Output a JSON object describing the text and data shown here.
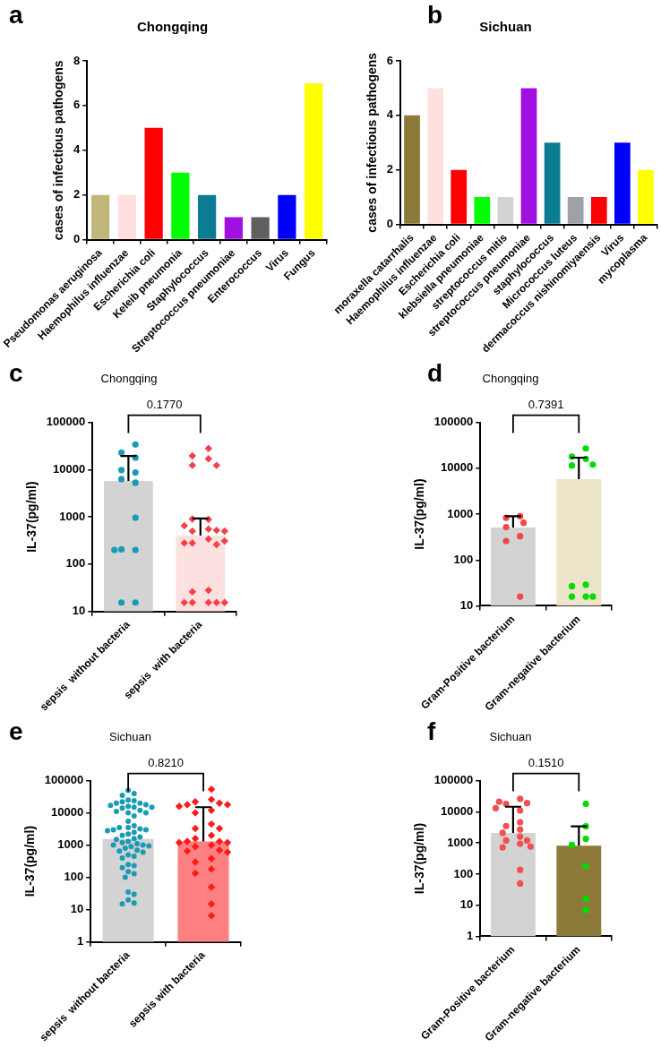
{
  "chart_data": [
    {
      "type": "bar",
      "title": "Chongqing",
      "ylabel": "cases of infectious pathogens",
      "annotations": [
        "a"
      ],
      "categories": [
        "Pseudomonas aeruginosa",
        "Haemophilus influenzae",
        "Escherichia coli",
        "Keleib pneumonia",
        "Staphylococcus",
        "Streptococcus pneumoniae",
        "Enterococcus",
        "Virus",
        "Fungus"
      ],
      "values": [
        2,
        2,
        5,
        3,
        2,
        1,
        1,
        2,
        7
      ],
      "colors": [
        "#c2b77a",
        "#ffdfe0",
        "#ff0000",
        "#00ff00",
        "#0a7d94",
        "#a010e0",
        "#606060",
        "#0000ff",
        "#ffff00"
      ],
      "ylim": [
        0,
        8
      ],
      "yticks": [
        0,
        2,
        4,
        6,
        8
      ],
      "grid": false,
      "legend": false
    },
    {
      "type": "bar",
      "title": "Sichuan",
      "ylabel": "cases of infectious pathogens",
      "annotations": [
        "b"
      ],
      "categories": [
        "moraxella catarrhalis",
        "Haemophilus influenzae",
        "Escherichia coli",
        "klebsiella pneumoniae",
        "streptococcus mitis",
        "streptococcus pneumoniae",
        "staphylococcus",
        "Micrococcus luteus",
        "dermacoccus nishinomiyaensis",
        "Virus",
        "mycoplasma"
      ],
      "values": [
        4,
        5,
        2,
        1,
        1,
        5,
        3,
        1,
        1,
        3,
        2
      ],
      "colors": [
        "#8b7a3a",
        "#ffe0e0",
        "#ff0000",
        "#00ff00",
        "#d3d3d3",
        "#a010e0",
        "#0a7d94",
        "#a0a0a8",
        "#ff0000",
        "#0000ff",
        "#ffff00"
      ],
      "ylim": [
        0,
        6
      ],
      "yticks": [
        0,
        2,
        4,
        6
      ],
      "grid": false,
      "legend": false
    },
    {
      "type": "bar",
      "title": "Chongqing",
      "ylabel": "IL-37(pg/ml)",
      "annotations": [
        "c",
        "0.1770"
      ],
      "log": true,
      "categories": [
        "sepsis  without bacteria",
        "sepsis  with bacteria"
      ],
      "ylim": [
        10,
        100000
      ],
      "yticks": [
        10,
        100,
        1000,
        10000,
        100000
      ],
      "grid": false,
      "legend": false,
      "series": [
        {
          "type": "bar",
          "values": [
            5750,
            400
          ],
          "colors": [
            "#d3d3d3",
            "#fde0e0"
          ],
          "errors": [
            [
              5750,
              19500
            ],
            [
              400,
              930
            ]
          ]
        },
        {
          "type": "scatter",
          "marker": "circle",
          "color": "#1a9bb5",
          "x": [
            "sepsis  without bacteria",
            "sepsis  without bacteria",
            "sepsis  without bacteria",
            "sepsis  without bacteria",
            "sepsis  without bacteria",
            "sepsis  without bacteria",
            "sepsis  without bacteria",
            "sepsis  without bacteria",
            "sepsis  without bacteria",
            "sepsis  without bacteria",
            "sepsis  without bacteria",
            "sepsis  without bacteria",
            "sepsis  without bacteria"
          ],
          "values": [
            34000,
            18000,
            23000,
            8700,
            9800,
            5300,
            6300,
            960,
            200,
            205,
            200,
            15.4,
            15.4
          ]
        },
        {
          "type": "scatter",
          "marker": "diamond",
          "color": "#f5404a",
          "x": [
            "sepsis  with bacteria",
            "sepsis  with bacteria",
            "sepsis  with bacteria",
            "sepsis  with bacteria",
            "sepsis  with bacteria",
            "sepsis  with bacteria",
            "sepsis  with bacteria",
            "sepsis  with bacteria",
            "sepsis  with bacteria",
            "sepsis  with bacteria",
            "sepsis  with bacteria",
            "sepsis  with bacteria",
            "sepsis  with bacteria",
            "sepsis  with bacteria",
            "sepsis  with bacteria",
            "sepsis  with bacteria",
            "sepsis  with bacteria",
            "sepsis  with bacteria",
            "sepsis  with bacteria",
            "sepsis  with bacteria",
            "sepsis  with bacteria",
            "sepsis  with bacteria",
            "sepsis  with bacteria",
            "sepsis  with bacteria"
          ],
          "values": [
            28000,
            17000,
            19500,
            12300,
            12300,
            880,
            900,
            550,
            500,
            520,
            650,
            500,
            340,
            280,
            260,
            280,
            310,
            28,
            26,
            15.4,
            15.4,
            15.4,
            15.4,
            15.4
          ]
        }
      ]
    },
    {
      "type": "bar",
      "title": "Chongqing",
      "ylabel": "IL-37(pg/ml)",
      "annotations": [
        "d",
        "0.7391"
      ],
      "log": true,
      "categories": [
        "Gram-Positive bacterium",
        "Gram-negative bacterium"
      ],
      "ylim": [
        10,
        100000
      ],
      "yticks": [
        10,
        100,
        1000,
        10000,
        100000
      ],
      "grid": false,
      "legend": false,
      "series": [
        {
          "type": "bar",
          "values": [
            510,
            5800
          ],
          "colors": [
            "#d3d3d3",
            "#ece4c8"
          ],
          "errors": [
            [
              510,
              900
            ],
            [
              5800,
              17000
            ]
          ]
        },
        {
          "type": "scatter",
          "marker": "circle",
          "color": "#f04848",
          "x": [
            "Gram-Positive bacterium",
            "Gram-Positive bacterium",
            "Gram-Positive bacterium",
            "Gram-Positive bacterium",
            "Gram-Positive bacterium",
            "Gram-Positive bacterium",
            "Gram-Positive bacterium"
          ],
          "values": [
            900,
            830,
            650,
            520,
            330,
            260,
            16
          ]
        },
        {
          "type": "scatter",
          "marker": "circle",
          "color": "#00dd00",
          "x": [
            "Gram-negative bacterium",
            "Gram-negative bacterium",
            "Gram-negative bacterium",
            "Gram-negative bacterium",
            "Gram-negative bacterium",
            "Gram-negative bacterium",
            "Gram-negative bacterium",
            "Gram-negative bacterium",
            "Gram-negative bacterium",
            "Gram-negative bacterium"
          ],
          "values": [
            27000,
            16000,
            18000,
            11500,
            12000,
            29,
            27,
            16,
            16,
            16
          ]
        }
      ]
    },
    {
      "type": "bar",
      "title": "Sichuan",
      "ylabel": "IL-37(pg/ml)",
      "annotations": [
        "e",
        "0.8210"
      ],
      "log": true,
      "categories": [
        "sepsis  without bacteria",
        "sepsis with bacteria"
      ],
      "ylim": [
        1,
        100000
      ],
      "yticks": [
        1,
        10,
        100,
        1000,
        10000,
        100000
      ],
      "grid": false,
      "legend": false,
      "series": [
        {
          "type": "bar",
          "values": [
            1550,
            1300
          ],
          "colors": [
            "#d3d3d3",
            "#ff8080"
          ],
          "errors": [
            null,
            [
              1300,
              15000
            ]
          ]
        },
        {
          "type": "scatter",
          "marker": "circle",
          "color": "#1a9bb5",
          "x": [
            "sepsis  without bacteria",
            "sepsis  without bacteria",
            "sepsis  without bacteria",
            "sepsis  without bacteria",
            "sepsis  without bacteria",
            "sepsis  without bacteria",
            "sepsis  without bacteria",
            "sepsis  without bacteria",
            "sepsis  without bacteria",
            "sepsis  without bacteria",
            "sepsis  without bacteria",
            "sepsis  without bacteria",
            "sepsis  without bacteria",
            "sepsis  without bacteria",
            "sepsis  without bacteria",
            "sepsis  without bacteria",
            "sepsis  without bacteria",
            "sepsis  without bacteria",
            "sepsis  without bacteria",
            "sepsis  without bacteria",
            "sepsis  without bacteria",
            "sepsis  without bacteria",
            "sepsis  without bacteria",
            "sepsis  without bacteria",
            "sepsis  without bacteria",
            "sepsis  without bacteria",
            "sepsis  without bacteria",
            "sepsis  without bacteria",
            "sepsis  without bacteria",
            "sepsis  without bacteria",
            "sepsis  without bacteria",
            "sepsis  without bacteria",
            "sepsis  without bacteria",
            "sepsis  without bacteria",
            "sepsis  without bacteria",
            "sepsis  without bacteria",
            "sepsis  without bacteria",
            "sepsis  without bacteria",
            "sepsis  without bacteria",
            "sepsis  without bacteria",
            "sepsis  without bacteria",
            "sepsis  without bacteria",
            "sepsis  without bacteria",
            "sepsis  without bacteria",
            "sepsis  without bacteria",
            "sepsis  without bacteria",
            "sepsis  without bacteria",
            "sepsis  without bacteria",
            "sepsis  without bacteria",
            "sepsis  without bacteria",
            "sepsis  without bacteria",
            "sepsis  without bacteria",
            "sepsis  without bacteria",
            "sepsis  without bacteria",
            "sepsis  without bacteria",
            "sepsis  without bacteria",
            "sepsis  without bacteria",
            "sepsis  without bacteria"
          ],
          "values": [
            50000,
            40000,
            35000,
            25000,
            24000,
            22000,
            20000,
            20000,
            18000,
            17000,
            16000,
            15000,
            15000,
            14000,
            12000,
            11000,
            10000,
            10000,
            8000,
            5500,
            4000,
            3500,
            3500,
            3200,
            3000,
            3000,
            2800,
            2500,
            2200,
            2000,
            1800,
            1600,
            1500,
            1300,
            1200,
            1100,
            1000,
            1000,
            950,
            900,
            800,
            700,
            650,
            600,
            500,
            450,
            400,
            250,
            230,
            200,
            150,
            130,
            100,
            35,
            30,
            20,
            16,
            15
          ]
        },
        {
          "type": "scatter",
          "marker": "diamond",
          "color": "#ff1a1a",
          "x": [
            "sepsis with bacteria",
            "sepsis with bacteria",
            "sepsis with bacteria",
            "sepsis with bacteria",
            "sepsis with bacteria",
            "sepsis with bacteria",
            "sepsis with bacteria",
            "sepsis with bacteria",
            "sepsis with bacteria",
            "sepsis with bacteria",
            "sepsis with bacteria",
            "sepsis with bacteria",
            "sepsis with bacteria",
            "sepsis with bacteria",
            "sepsis with bacteria",
            "sepsis with bacteria",
            "sepsis with bacteria",
            "sepsis with bacteria",
            "sepsis with bacteria",
            "sepsis with bacteria",
            "sepsis with bacteria",
            "sepsis with bacteria",
            "sepsis with bacteria",
            "sepsis with bacteria",
            "sepsis with bacteria",
            "sepsis with bacteria",
            "sepsis with bacteria",
            "sepsis with bacteria",
            "sepsis with bacteria",
            "sepsis with bacteria"
          ],
          "values": [
            54000,
            26000,
            22000,
            20000,
            18000,
            18000,
            16000,
            12000,
            10000,
            4500,
            3300,
            3300,
            2000,
            1600,
            1300,
            1300,
            1200,
            1200,
            1000,
            900,
            700,
            650,
            600,
            380,
            300,
            180,
            135,
            50,
            15,
            6.5
          ]
        }
      ]
    },
    {
      "type": "bar",
      "title": "Sichuan",
      "ylabel": "IL-37(pg/ml)",
      "annotations": [
        "f",
        "0.1510"
      ],
      "log": true,
      "categories": [
        "Gram-Positive bacterium",
        "Gram-negative bacterium"
      ],
      "ylim": [
        1,
        100000
      ],
      "yticks": [
        1,
        10,
        100,
        1000,
        10000,
        100000
      ],
      "grid": false,
      "legend": false,
      "series": [
        {
          "type": "bar",
          "values": [
            2100,
            820
          ],
          "colors": [
            "#d3d3d3",
            "#8b7a3a"
          ],
          "errors": [
            [
              2100,
              14500
            ],
            [
              820,
              3400
            ]
          ]
        },
        {
          "type": "scatter",
          "marker": "circle",
          "color": "#f05050",
          "x": [
            "Gram-Positive bacterium",
            "Gram-Positive bacterium",
            "Gram-Positive bacterium",
            "Gram-Positive bacterium",
            "Gram-Positive bacterium",
            "Gram-Positive bacterium",
            "Gram-Positive bacterium",
            "Gram-Positive bacterium",
            "Gram-Positive bacterium",
            "Gram-Positive bacterium",
            "Gram-Positive bacterium",
            "Gram-Positive bacterium",
            "Gram-Positive bacterium",
            "Gram-Positive bacterium",
            "Gram-Positive bacterium",
            "Gram-Positive bacterium",
            "Gram-Positive bacterium",
            "Gram-Positive bacterium"
          ],
          "values": [
            26000,
            18000,
            19000,
            21000,
            11000,
            13000,
            4600,
            3500,
            2700,
            2100,
            1600,
            1200,
            1200,
            940,
            720,
            760,
            137,
            50
          ]
        },
        {
          "type": "scatter",
          "marker": "circle",
          "color": "#00dd00",
          "x": [
            "Gram-negative bacterium",
            "Gram-negative bacterium",
            "Gram-negative bacterium",
            "Gram-negative bacterium",
            "Gram-negative bacterium",
            "Gram-negative bacterium",
            "Gram-negative bacterium"
          ],
          "values": [
            18000,
            3400,
            1350,
            860,
            180,
            16,
            7
          ]
        }
      ]
    }
  ]
}
